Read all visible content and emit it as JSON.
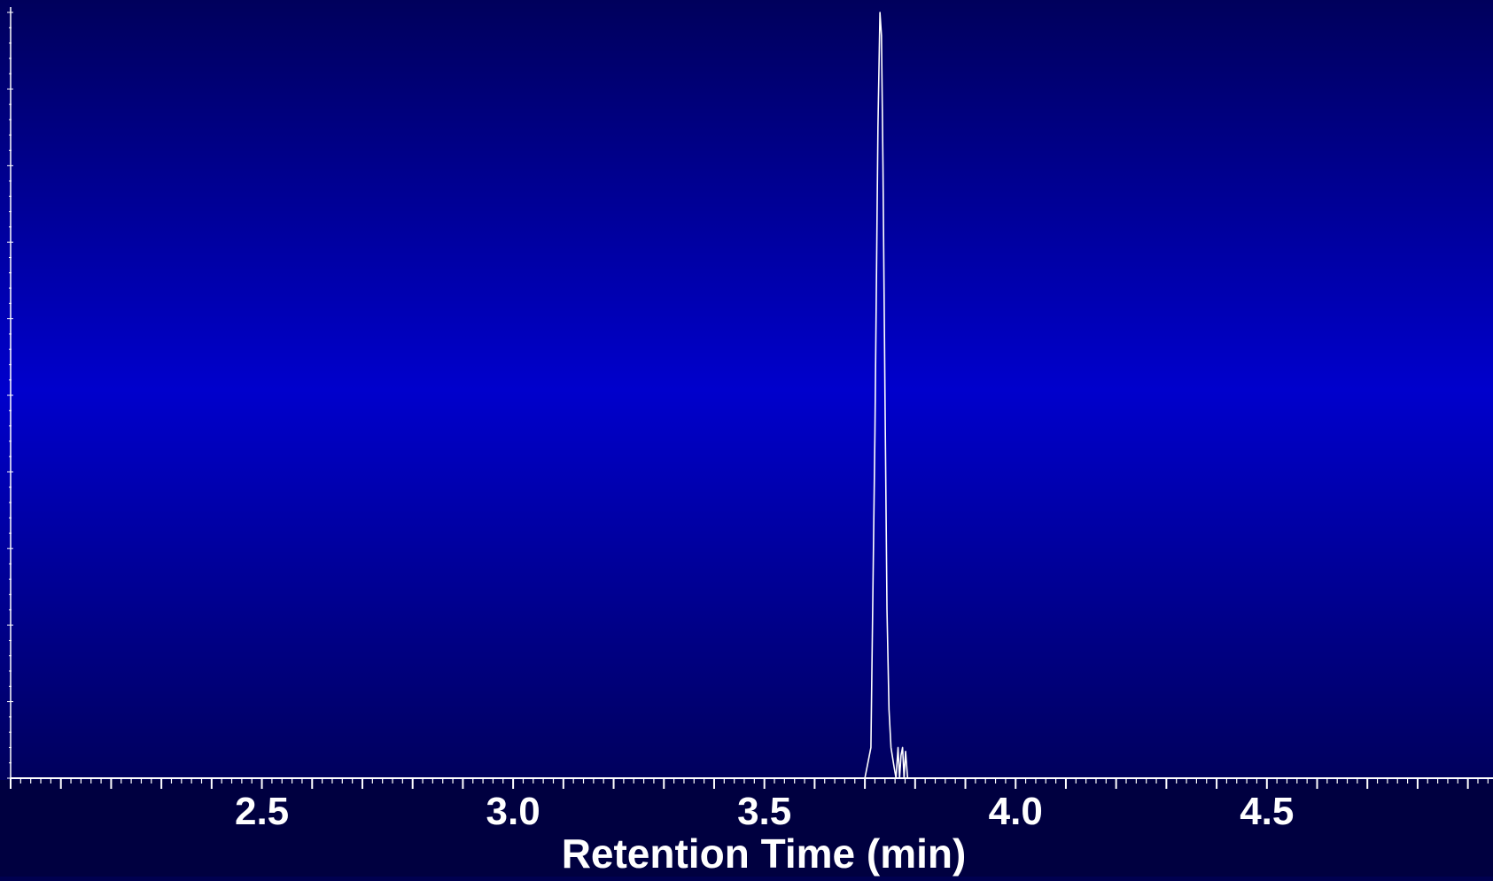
{
  "chart_data": {
    "type": "line",
    "title": "",
    "xlabel": "Retention Time (min)",
    "ylabel": "",
    "xlim": [
      2.0,
      4.95
    ],
    "ylim": [
      0,
      100
    ],
    "x_ticks": [
      2.5,
      3.0,
      3.5,
      4.0,
      4.5
    ],
    "x_tick_labels": [
      "2.5",
      "3.0",
      "3.5",
      "4.0",
      "4.5"
    ],
    "grid": false,
    "series": [
      {
        "line_color": "#ffffff",
        "x": [
          2.0,
          3.7,
          3.712,
          3.72,
          3.726,
          3.73,
          3.733,
          3.736,
          3.74,
          3.744,
          3.748,
          3.752,
          3.758,
          3.762,
          3.766,
          3.769,
          3.772,
          3.775,
          3.778,
          3.781,
          3.785,
          3.79,
          4.95
        ],
        "y": [
          0,
          0,
          4,
          45,
          85,
          100,
          97,
          80,
          50,
          22,
          9,
          4,
          1.5,
          0,
          4,
          0,
          3,
          4,
          0,
          3.5,
          0,
          0,
          0
        ]
      }
    ]
  },
  "colors": {
    "background_top": "#00005c",
    "background_middle": "#0000cc",
    "background_bottom": "#00005c",
    "footer": "#000040",
    "axis": "#ffffff",
    "text": "#ffffff"
  }
}
